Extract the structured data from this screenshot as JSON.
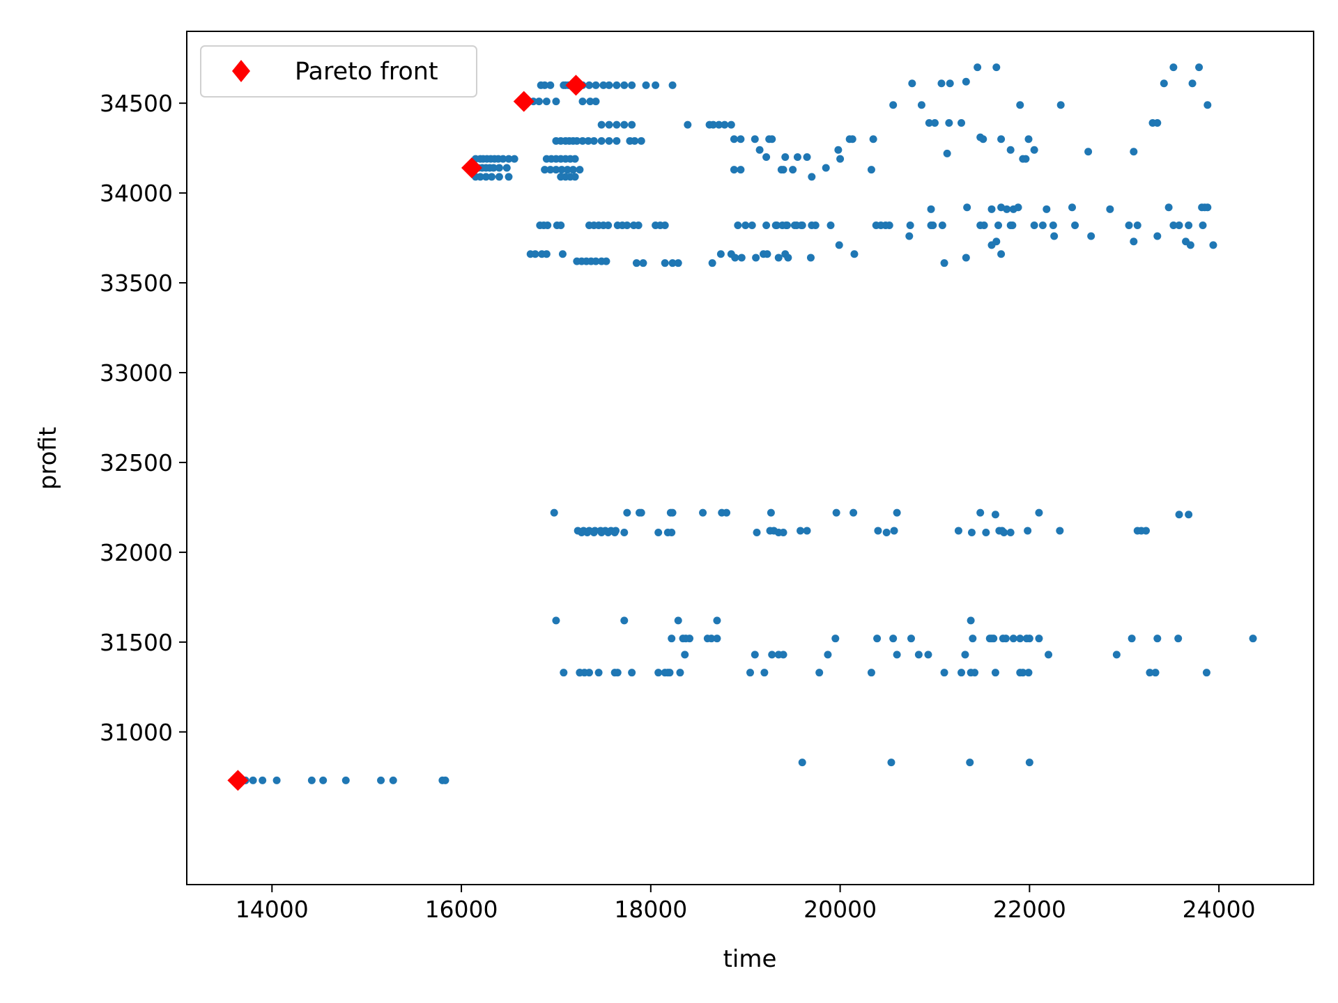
{
  "chart_data": {
    "type": "scatter",
    "title": "",
    "xlabel": "time",
    "ylabel": "profit",
    "xlim": [
      13100,
      25000
    ],
    "ylim": [
      30150,
      34900
    ],
    "xticks": [
      14000,
      16000,
      18000,
      20000,
      22000,
      24000
    ],
    "yticks": [
      31000,
      31500,
      32000,
      32500,
      33000,
      33500,
      34000,
      34500
    ],
    "grid": false,
    "legend_placement": "top-left",
    "colors": {
      "points": "#1f77b4",
      "pareto": "#ff0000"
    },
    "series": [
      {
        "name": "",
        "marker": "circle",
        "x": [
          13720,
          13800,
          13900,
          14050,
          14420,
          14540,
          14780,
          15150,
          15280,
          15800,
          15830,
          16150,
          16200,
          16230,
          16270,
          16310,
          16350,
          16390,
          16440,
          16500,
          16560,
          16180,
          16220,
          16260,
          16300,
          16340,
          16400,
          16480,
          16150,
          16200,
          16260,
          16320,
          16400,
          16500,
          16700,
          16760,
          16820,
          16900,
          17000,
          16840,
          16880,
          16940,
          17080,
          17100,
          17130,
          17160,
          17200,
          17240,
          17280,
          17350,
          17420,
          17500,
          17560,
          17640,
          17720,
          17800,
          17280,
          17360,
          17420,
          17480,
          17560,
          17640,
          17720,
          17800,
          17950,
          18050,
          18230,
          17000,
          17050,
          17100,
          17140,
          17180,
          17220,
          17280,
          17340,
          17400,
          17480,
          17560,
          17640,
          17780,
          17830,
          17900,
          16900,
          16950,
          17000,
          17050,
          17100,
          17150,
          17200,
          16880,
          16940,
          17000,
          17060,
          17120,
          17180,
          17250,
          17050,
          17100,
          17150,
          17200,
          16830,
          16870,
          16910,
          17010,
          17050,
          17350,
          17400,
          17450,
          17500,
          17550,
          17650,
          17700,
          17750,
          17820,
          17870,
          18050,
          18100,
          18150,
          16730,
          16780,
          16850,
          16900,
          17070,
          17220,
          17270,
          17320,
          17370,
          17420,
          17480,
          17530,
          17850,
          17920,
          18150,
          18230,
          18290,
          16980,
          17270,
          17330,
          17400,
          17480,
          17550,
          17620,
          17720,
          17900,
          18230,
          18550,
          18750,
          17230,
          17290,
          17350,
          17410,
          17470,
          17520,
          17580,
          17630,
          18080,
          18180,
          18220,
          17000,
          17720,
          18290,
          18220,
          18340,
          18370,
          18410,
          18600,
          18640,
          18700,
          18360,
          17250,
          17300,
          17350,
          17450,
          17620,
          18150,
          18390,
          18620,
          18660,
          18720,
          18780,
          18850,
          18880,
          18950,
          18880,
          18950,
          19100,
          19150,
          19250,
          19280,
          19220,
          19380,
          19400,
          19420,
          19500,
          19550,
          19650,
          19700,
          19850,
          19980,
          20000,
          20100,
          20130,
          20330,
          20350,
          20560,
          20760,
          20860,
          20940,
          21000,
          21070,
          21130,
          21150,
          21160,
          21280,
          21330,
          21450,
          21480,
          21510,
          21650,
          21700,
          21800,
          21900,
          21930,
          21960,
          21990,
          22050,
          22330,
          22620,
          23100,
          23300,
          23350,
          23420,
          23520,
          23720,
          23790,
          23880,
          18650,
          18740,
          18850,
          18890,
          18960,
          19110,
          19190,
          19230,
          19350,
          19420,
          19450,
          19690,
          19990,
          20150,
          20380,
          20730,
          20980,
          21100,
          21330,
          21600,
          21650,
          21700,
          21800,
          22260,
          22650,
          23100,
          23350,
          23650,
          23700,
          23880,
          23940,
          18920,
          19000,
          19330,
          19390,
          19440,
          19540,
          19590,
          19740,
          19900,
          20430,
          20740,
          20960,
          21340,
          21600,
          21700,
          21760,
          21830,
          21880,
          22180,
          22450,
          22850,
          23470,
          23820,
          23850,
          17750,
          17880,
          18210,
          18800,
          19270,
          19960,
          20140,
          20600,
          21480,
          21640,
          22100,
          23580,
          23680,
          19120,
          19350,
          19400,
          20490,
          21390,
          21540,
          21730,
          21800,
          22320,
          18700,
          20390,
          21380,
          21580,
          21620,
          21720,
          22000,
          23080,
          23570,
          24360,
          19050,
          19200,
          19780,
          20330,
          20600,
          20750,
          20830,
          21100,
          21280,
          21380,
          21420,
          21640,
          21900,
          21930,
          21990,
          22200,
          23270,
          23330,
          23870,
          19070,
          19220,
          19320,
          19430,
          19520,
          19600,
          19700,
          20480,
          20520,
          20960,
          21080,
          21480,
          21520,
          21670,
          21820,
          22050,
          22140,
          22250,
          22480,
          23050,
          23140,
          23520,
          23580,
          23680,
          23830,
          19260,
          19300,
          19580,
          19650,
          20400,
          20570,
          21250,
          21680,
          21710,
          21980,
          23140,
          23180,
          23230,
          17080,
          17250,
          17650,
          17800,
          18080,
          18180,
          18200,
          18310,
          19100,
          19280,
          19350,
          19400,
          19870,
          20930,
          21320,
          22920,
          19600,
          20540,
          21370,
          22000,
          19950,
          20560,
          21400,
          21600,
          21750,
          21830,
          21900,
          21970,
          22100,
          23350
        ],
        "y": [
          30730,
          30730,
          30730,
          30730,
          30730,
          30730,
          30730,
          30730,
          30730,
          30730,
          30730,
          34190,
          34190,
          34190,
          34190,
          34190,
          34190,
          34190,
          34190,
          34190,
          34190,
          34140,
          34140,
          34140,
          34140,
          34140,
          34140,
          34140,
          34090,
          34090,
          34090,
          34090,
          34090,
          34090,
          34510,
          34510,
          34510,
          34510,
          34510,
          34600,
          34600,
          34600,
          34600,
          34600,
          34600,
          34600,
          34600,
          34600,
          34600,
          34600,
          34600,
          34600,
          34600,
          34600,
          34600,
          34600,
          34510,
          34510,
          34510,
          34380,
          34380,
          34380,
          34380,
          34380,
          34600,
          34600,
          34600,
          34290,
          34290,
          34290,
          34290,
          34290,
          34290,
          34290,
          34290,
          34290,
          34290,
          34290,
          34290,
          34290,
          34290,
          34290,
          34190,
          34190,
          34190,
          34190,
          34190,
          34190,
          34190,
          34130,
          34130,
          34130,
          34130,
          34130,
          34130,
          34130,
          34090,
          34090,
          34090,
          34090,
          33820,
          33820,
          33820,
          33820,
          33820,
          33820,
          33820,
          33820,
          33820,
          33820,
          33820,
          33820,
          33820,
          33820,
          33820,
          33820,
          33820,
          33820,
          33660,
          33660,
          33660,
          33660,
          33660,
          33620,
          33620,
          33620,
          33620,
          33620,
          33620,
          33620,
          33610,
          33610,
          33610,
          33610,
          33610,
          32220,
          32110,
          32110,
          32110,
          32110,
          32110,
          32110,
          32110,
          32220,
          32220,
          32220,
          32220,
          32120,
          32120,
          32120,
          32120,
          32120,
          32120,
          32120,
          32120,
          32110,
          32110,
          32110,
          31620,
          31620,
          31620,
          31520,
          31520,
          31520,
          31520,
          31520,
          31520,
          31520,
          31430,
          31330,
          31330,
          31330,
          31330,
          31330,
          31330,
          34380,
          34380,
          34380,
          34380,
          34380,
          34380,
          34130,
          34130,
          34300,
          34300,
          34300,
          34240,
          34300,
          34300,
          34200,
          34130,
          34130,
          34200,
          34130,
          34200,
          34200,
          34090,
          34140,
          34240,
          34190,
          34300,
          34300,
          34130,
          34300,
          34490,
          34610,
          34490,
          34390,
          34390,
          34610,
          34220,
          34390,
          34610,
          34390,
          34620,
          34700,
          34310,
          34300,
          34700,
          34300,
          34240,
          34490,
          34190,
          34190,
          34300,
          34240,
          34490,
          34230,
          34230,
          34390,
          34390,
          34610,
          34700,
          34610,
          34700,
          34490,
          33610,
          33660,
          33660,
          33640,
          33640,
          33640,
          33660,
          33660,
          33640,
          33660,
          33640,
          33640,
          33710,
          33660,
          33820,
          33760,
          33820,
          33610,
          33640,
          33710,
          33730,
          33660,
          33820,
          33760,
          33760,
          33730,
          33760,
          33730,
          33710,
          33920,
          33710,
          33820,
          33820,
          33820,
          33820,
          33820,
          33820,
          33820,
          33820,
          33820,
          33820,
          33820,
          33910,
          33920,
          33910,
          33920,
          33910,
          33910,
          33920,
          33910,
          33920,
          33910,
          33920,
          33920,
          33920,
          32220,
          32220,
          32220,
          32220,
          32220,
          32220,
          32220,
          32220,
          32220,
          32210,
          32220,
          32210,
          32210,
          32110,
          32110,
          32110,
          32110,
          32110,
          32110,
          32110,
          32110,
          32120,
          31620,
          31520,
          31620,
          31520,
          31520,
          31520,
          31520,
          31520,
          31520,
          31520,
          31330,
          31330,
          31330,
          31330,
          31430,
          31520,
          31430,
          31330,
          31330,
          31330,
          31330,
          31330,
          31330,
          31330,
          31330,
          31430,
          31330,
          31330,
          31330,
          33820,
          33820,
          33820,
          33820,
          33820,
          33820,
          33820,
          33820,
          33820,
          33820,
          33820,
          33820,
          33820,
          33820,
          33820,
          33820,
          33820,
          33820,
          33820,
          33820,
          33820,
          33820,
          33820,
          33820,
          33820,
          32120,
          32120,
          32120,
          32120,
          32120,
          32120,
          32120,
          32120,
          32120,
          32120,
          32120,
          32120,
          32120,
          31330,
          31330,
          31330,
          31330,
          31330,
          31330,
          31330,
          31330,
          31430,
          31430,
          31430,
          31430,
          31430,
          31430,
          31430,
          31430,
          30830,
          30830,
          30830,
          30830,
          31520,
          31520,
          31520,
          31520,
          31520,
          31520,
          31520,
          31520,
          31520,
          31520
        ]
      },
      {
        "name": "Pareto front",
        "marker": "diamond",
        "x": [
          13640,
          16110,
          16660,
          17210
        ],
        "y": [
          30730,
          34140,
          34510,
          34600
        ]
      }
    ]
  }
}
